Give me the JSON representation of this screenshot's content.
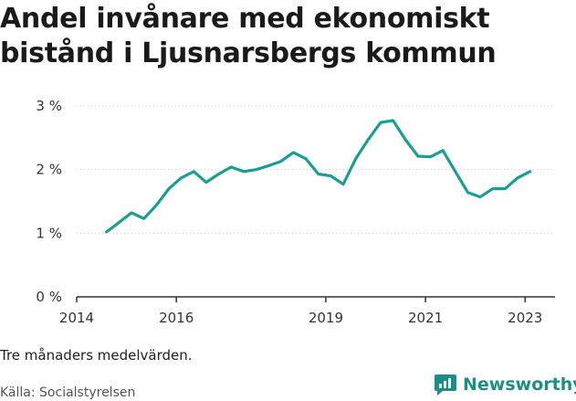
{
  "title": "Andel invånare med ekonomiskt bistånd i Ljusnarsbergs kommun",
  "note": "Tre månaders medelvärden.",
  "source": "Källa: Socialstyrelsen",
  "brand": {
    "name": "Newsworthy",
    "icon": "newsworthy-logo-icon",
    "color": "#1a8f86"
  },
  "colors": {
    "line": "#1a9e92",
    "axis": "#333333",
    "grid": "#cccccc"
  },
  "chart_data": {
    "type": "line",
    "title": "Andel invånare med ekonomiskt bistånd i Ljusnarsbergs kommun",
    "xlabel": "",
    "ylabel": "",
    "xlim": [
      2014,
      2023.6
    ],
    "ylim": [
      0,
      3
    ],
    "x_ticks": [
      2014,
      2016,
      2019,
      2021,
      2023
    ],
    "y_ticks": [
      {
        "value": 0,
        "label": "0 %"
      },
      {
        "value": 1,
        "label": "1 %"
      },
      {
        "value": 2,
        "label": "2 %"
      },
      {
        "value": 3,
        "label": "3 %"
      }
    ],
    "grid": "horizontal",
    "series": [
      {
        "x": [
          2014.6,
          2014.85,
          2015.1,
          2015.35,
          2015.6,
          2015.85,
          2016.1,
          2016.35,
          2016.6,
          2016.85,
          2017.1,
          2017.35,
          2017.6,
          2017.85,
          2018.1,
          2018.35,
          2018.6,
          2018.85,
          2019.1,
          2019.35,
          2019.6,
          2019.85,
          2020.1,
          2020.35,
          2020.6,
          2020.85,
          2021.1,
          2021.35,
          2021.6,
          2021.85,
          2022.1,
          2022.35,
          2022.6,
          2022.85,
          2023.1
        ],
        "y": [
          1.02,
          1.17,
          1.32,
          1.23,
          1.44,
          1.7,
          1.87,
          1.97,
          1.8,
          1.93,
          2.04,
          1.97,
          2.0,
          2.06,
          2.13,
          2.27,
          2.17,
          1.93,
          1.9,
          1.77,
          2.17,
          2.47,
          2.74,
          2.77,
          2.47,
          2.21,
          2.2,
          2.3,
          1.97,
          1.64,
          1.57,
          1.7,
          1.7,
          1.87,
          1.97
        ]
      }
    ]
  }
}
